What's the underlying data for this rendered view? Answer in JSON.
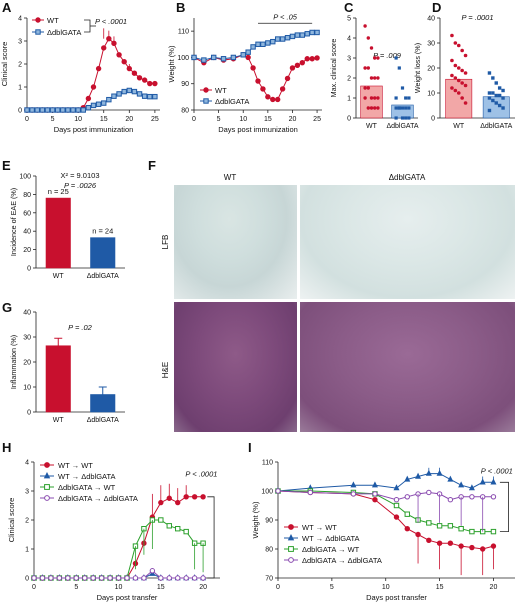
{
  "colors": {
    "wt": "#c8102e",
    "ko": "#1f5aa6",
    "green": "#2ca02c",
    "purple": "#8a4bb0",
    "axis": "#222222"
  },
  "panel_letters": [
    "A",
    "B",
    "C",
    "D",
    "E",
    "F",
    "G",
    "H",
    "I"
  ],
  "f_labels": {
    "wt": "WT",
    "ko": "ΔdblGATA",
    "lfb": "LFB",
    "he": "H&E"
  },
  "chart_data": [
    {
      "id": "A",
      "type": "line",
      "xlabel": "Days post immunization",
      "ylabel": "Clinical score",
      "xlim": [
        0,
        26
      ],
      "ylim": [
        0,
        4
      ],
      "xticks": [
        "0",
        "5",
        "10",
        "15",
        "20",
        "25"
      ],
      "yticks": [
        "0",
        "1",
        "2",
        "3",
        "4"
      ],
      "x": [
        0,
        1,
        2,
        3,
        4,
        5,
        6,
        7,
        8,
        9,
        10,
        11,
        12,
        13,
        14,
        15,
        16,
        17,
        18,
        19,
        20,
        21,
        22,
        23,
        24,
        25
      ],
      "series": [
        {
          "name": "WT",
          "color": "#c8102e",
          "marker": "circle",
          "values": [
            0,
            0,
            0,
            0,
            0,
            0,
            0,
            0,
            0,
            0,
            0,
            0.1,
            0.5,
            1.0,
            1.8,
            2.7,
            3.1,
            2.9,
            2.4,
            2.1,
            1.8,
            1.6,
            1.4,
            1.3,
            1.15,
            1.15
          ]
        },
        {
          "name": "ΔdblGATA",
          "color": "#1f5aa6",
          "marker": "square",
          "values": [
            0,
            0,
            0,
            0,
            0,
            0,
            0,
            0,
            0,
            0,
            0,
            0,
            0.1,
            0.2,
            0.25,
            0.3,
            0.45,
            0.6,
            0.7,
            0.8,
            0.85,
            0.8,
            0.7,
            0.6,
            0.58,
            0.58
          ]
        }
      ],
      "annotation": "P < .0001"
    },
    {
      "id": "B",
      "type": "line",
      "xlabel": "Days post immunization",
      "ylabel": "Weight (%)",
      "xlim": [
        0,
        26
      ],
      "ylim": [
        80,
        115
      ],
      "xticks": [
        "0",
        "5",
        "10",
        "15",
        "20",
        "25"
      ],
      "yticks": [
        "80",
        "90",
        "100",
        "110"
      ],
      "x": [
        0,
        2,
        4,
        6,
        8,
        10,
        11,
        12,
        13,
        14,
        15,
        16,
        17,
        18,
        19,
        20,
        21,
        22,
        23,
        24,
        25
      ],
      "series": [
        {
          "name": "WT",
          "color": "#c8102e",
          "marker": "circle",
          "values": [
            100,
            98,
            100,
            99,
            99.5,
            101,
            100,
            96,
            91,
            88,
            85,
            84,
            84,
            88,
            92,
            96,
            97,
            98,
            99.5,
            99.5,
            99.8
          ]
        },
        {
          "name": "ΔdblGATA",
          "color": "#1f5aa6",
          "marker": "square",
          "values": [
            100,
            99,
            100,
            99.5,
            100,
            101,
            102,
            104,
            105,
            105,
            105.5,
            106,
            107,
            107,
            107.5,
            108,
            108.5,
            108.5,
            109,
            109.5,
            109.5
          ]
        }
      ],
      "annotation": "P < .05"
    },
    {
      "id": "C",
      "type": "bar",
      "ylabel": "Max. clinical score",
      "ylim": [
        0,
        5
      ],
      "yticks": [
        "0",
        "1",
        "2",
        "3",
        "4",
        "5"
      ],
      "categories": [
        "WT",
        "ΔdblGATA"
      ],
      "values": [
        1.6,
        0.65
      ],
      "annotation": "P = .009"
    },
    {
      "id": "D",
      "type": "bar",
      "ylabel": "Weight loss (%)",
      "ylim": [
        0,
        40
      ],
      "yticks": [
        "0",
        "10",
        "20",
        "30",
        "40"
      ],
      "categories": [
        "WT",
        "ΔdblGATA"
      ],
      "values": [
        15.5,
        8.5
      ],
      "annotation": "P = .0001"
    },
    {
      "id": "E",
      "type": "bar",
      "ylabel": "Incidence of EAE (%)",
      "ylim": [
        0,
        100
      ],
      "yticks": [
        "0",
        "20",
        "40",
        "60",
        "80",
        "100"
      ],
      "categories": [
        "WT",
        "ΔdblGATA"
      ],
      "values": [
        76,
        33
      ],
      "bar_labels": [
        "n = 25",
        "n = 24"
      ],
      "annotation": [
        "X² = 9.0103",
        "P = .0026"
      ]
    },
    {
      "id": "G",
      "type": "bar",
      "ylabel": "Inflammation (%)",
      "ylim": [
        0,
        40
      ],
      "yticks": [
        "0",
        "10",
        "20",
        "30",
        "40"
      ],
      "categories": [
        "WT",
        "ΔdblGATA"
      ],
      "values": [
        26.5,
        7
      ],
      "errors": [
        3,
        3
      ],
      "annotation": "P = .02"
    },
    {
      "id": "H",
      "type": "line",
      "xlabel": "Days post transfer",
      "ylabel": "Clinical score",
      "xlim": [
        0,
        22
      ],
      "ylim": [
        0,
        4
      ],
      "xticks": [
        "0",
        "5",
        "10",
        "15",
        "20"
      ],
      "yticks": [
        "0",
        "1",
        "2",
        "3",
        "4"
      ],
      "x": [
        0,
        1,
        2,
        3,
        4,
        5,
        6,
        7,
        8,
        9,
        10,
        11,
        12,
        13,
        14,
        15,
        16,
        17,
        18,
        19,
        20
      ],
      "series": [
        {
          "name": "WT → WT",
          "color": "#c8102e",
          "marker": "circle",
          "values": [
            0,
            0,
            0,
            0,
            0,
            0,
            0,
            0,
            0,
            0,
            0,
            0,
            0.5,
            1.2,
            2.1,
            2.6,
            2.75,
            2.6,
            2.8,
            2.8,
            2.8
          ]
        },
        {
          "name": "WT → ΔdblGATA",
          "color": "#1f5aa6",
          "marker": "triangle",
          "values": [
            0,
            0,
            0,
            0,
            0,
            0,
            0,
            0,
            0,
            0,
            0,
            0,
            0,
            0,
            0.15,
            0,
            0,
            0,
            0,
            0,
            0
          ]
        },
        {
          "name": "ΔdblGATA → WT",
          "color": "#2ca02c",
          "marker": "square-open",
          "values": [
            0,
            0,
            0,
            0,
            0,
            0,
            0,
            0,
            0,
            0,
            0,
            0,
            1.1,
            1.7,
            2.0,
            2.0,
            1.8,
            1.7,
            1.6,
            1.2,
            1.2
          ]
        },
        {
          "name": "ΔdblGATA → ΔdblGATA",
          "color": "#8a4bb0",
          "marker": "circle-open",
          "values": [
            0,
            0,
            0,
            0,
            0,
            0,
            0,
            0,
            0,
            0,
            0,
            0,
            0,
            0,
            0.25,
            0,
            0,
            0,
            0,
            0,
            0
          ]
        }
      ],
      "annotation": "P < .0001"
    },
    {
      "id": "I",
      "type": "line",
      "xlabel": "Days post transfer",
      "ylabel": "Weight (%)",
      "xlim": [
        0,
        22
      ],
      "ylim": [
        70,
        110
      ],
      "xticks": [
        "0",
        "5",
        "10",
        "15",
        "20"
      ],
      "yticks": [
        "70",
        "80",
        "90",
        "100",
        "110"
      ],
      "x": [
        0,
        3,
        7,
        9,
        11,
        12,
        13,
        14,
        15,
        16,
        17,
        18,
        19,
        20
      ],
      "series": [
        {
          "name": "WT → WT",
          "color": "#c8102e",
          "marker": "circle",
          "values": [
            100,
            99.5,
            99,
            97,
            91,
            87,
            85,
            83,
            82,
            82,
            81,
            80.5,
            80,
            81
          ]
        },
        {
          "name": "WT → ΔdblGATA",
          "color": "#1f5aa6",
          "marker": "triangle",
          "values": [
            100,
            101,
            102,
            102,
            101,
            104,
            105,
            106,
            106,
            104,
            102,
            101,
            103,
            103
          ]
        },
        {
          "name": "ΔdblGATA → WT",
          "color": "#2ca02c",
          "marker": "square-open",
          "values": [
            100,
            100,
            99.5,
            99,
            95,
            92,
            90,
            89,
            88,
            88,
            87,
            86,
            86,
            86
          ]
        },
        {
          "name": "ΔdblGATA → ΔdblGATA",
          "color": "#8a4bb0",
          "marker": "circle-open",
          "values": [
            100,
            99.5,
            99,
            99,
            97,
            98,
            99,
            99.5,
            99,
            97,
            98,
            98,
            98,
            98
          ]
        }
      ],
      "annotation": "P < .0001"
    }
  ]
}
